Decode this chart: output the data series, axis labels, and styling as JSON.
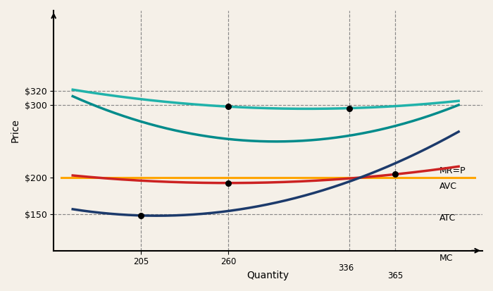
{
  "xlabel": "Quantity",
  "ylabel": "Price",
  "price_labels": [
    "$320",
    "$300",
    "$200",
    "$150"
  ],
  "price_values": [
    320,
    300,
    200,
    150
  ],
  "qty_ticks": [
    205,
    260,
    336,
    365
  ],
  "qty_labels": [
    "205",
    "260",
    "336",
    "365"
  ],
  "mr_price": 200,
  "x_min": 150,
  "x_max": 420,
  "y_min": 100,
  "y_max": 430,
  "atc_color": "#20B2AA",
  "avc_color": "#CC2222",
  "mc_teal_color": "#008B8B",
  "mc_navy_color": "#1C3A6B",
  "mr_color": "#FFA500",
  "dashed_color": "#888888",
  "background": "#F5F0E8",
  "curve_label_mc": [
    393,
    90
  ],
  "curve_label_atc": [
    393,
    145
  ],
  "curve_label_avc": [
    393,
    188
  ],
  "curve_label_mrp": [
    393,
    210
  ],
  "q0_atc": 310,
  "atc_min_val": 295,
  "a_atc": 0.0012,
  "q0_avc": 260,
  "avc_min_val": 193,
  "a_avc": 0.00108,
  "q0_mc": 215,
  "mc_min_val": 148,
  "a_mc": 0.0032,
  "q0_mc_teal": 290,
  "mc_teal_min_val": 250,
  "a_mc_teal": 0.0038
}
